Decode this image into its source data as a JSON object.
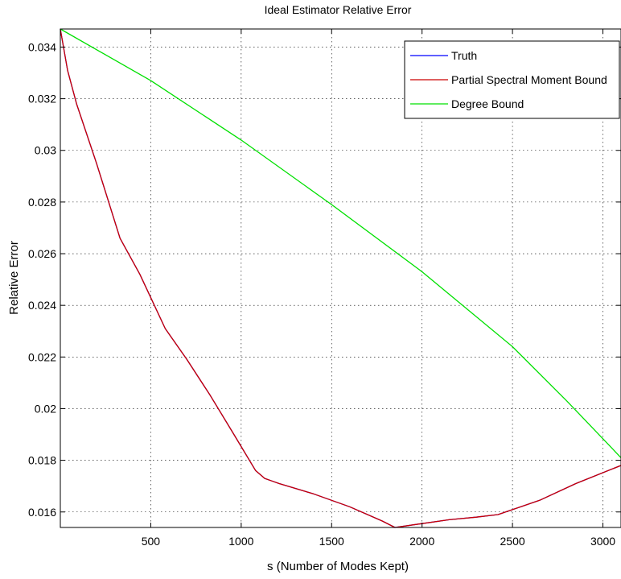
{
  "chart_data": {
    "type": "line",
    "title": "Ideal Estimator Relative Error",
    "xlabel": "s (Number of Modes Kept)",
    "ylabel": "Relative Error",
    "xlim": [
      0,
      3100
    ],
    "ylim": [
      0.0154,
      0.0347
    ],
    "xticks": [
      500,
      1000,
      1500,
      2000,
      2500,
      3000
    ],
    "yticks": [
      0.016,
      0.018,
      0.02,
      0.022,
      0.024,
      0.026,
      0.028,
      0.03,
      0.032,
      0.034
    ],
    "ytick_labels": [
      "0.016",
      "0.018",
      "0.02",
      "0.022",
      "0.024",
      "0.026",
      "0.028",
      "0.03",
      "0.032",
      "0.034"
    ],
    "grid": true,
    "legend_position": "top-right",
    "series": [
      {
        "name": "Truth",
        "color": "#0000ff",
        "x": [
          0,
          40,
          90,
          200,
          330,
          440,
          580,
          700,
          830,
          960,
          1080,
          1130,
          1170,
          1210,
          1400,
          1600,
          1780,
          1850,
          2000,
          2150,
          2300,
          2420,
          2650,
          2850,
          3100
        ],
        "y": [
          0.0347,
          0.0331,
          0.0318,
          0.0295,
          0.0266,
          0.0252,
          0.0231,
          0.0219,
          0.0205,
          0.019,
          0.0176,
          0.0173,
          0.0172,
          0.0171,
          0.0167,
          0.0162,
          0.01565,
          0.0154,
          0.01555,
          0.0157,
          0.0158,
          0.0159,
          0.01645,
          0.0171,
          0.0178
        ]
      },
      {
        "name": "Partial Spectral Moment Bound",
        "color": "#cc0000",
        "x": [
          0,
          40,
          90,
          200,
          330,
          440,
          580,
          700,
          830,
          960,
          1080,
          1130,
          1170,
          1210,
          1400,
          1600,
          1780,
          1850,
          2000,
          2150,
          2300,
          2420,
          2650,
          2850,
          3100
        ],
        "y": [
          0.0347,
          0.0331,
          0.0318,
          0.0295,
          0.0266,
          0.0252,
          0.0231,
          0.0219,
          0.0205,
          0.019,
          0.0176,
          0.0173,
          0.0172,
          0.0171,
          0.0167,
          0.0162,
          0.01565,
          0.0154,
          0.01555,
          0.0157,
          0.0158,
          0.0159,
          0.01645,
          0.0171,
          0.0178
        ]
      },
      {
        "name": "Degree Bound",
        "color": "#00e000",
        "x": [
          0,
          500,
          1000,
          1500,
          2000,
          2500,
          2800,
          3100
        ],
        "y": [
          0.0347,
          0.0327,
          0.0304,
          0.0279,
          0.0253,
          0.0224,
          0.0203,
          0.0181
        ]
      }
    ]
  }
}
